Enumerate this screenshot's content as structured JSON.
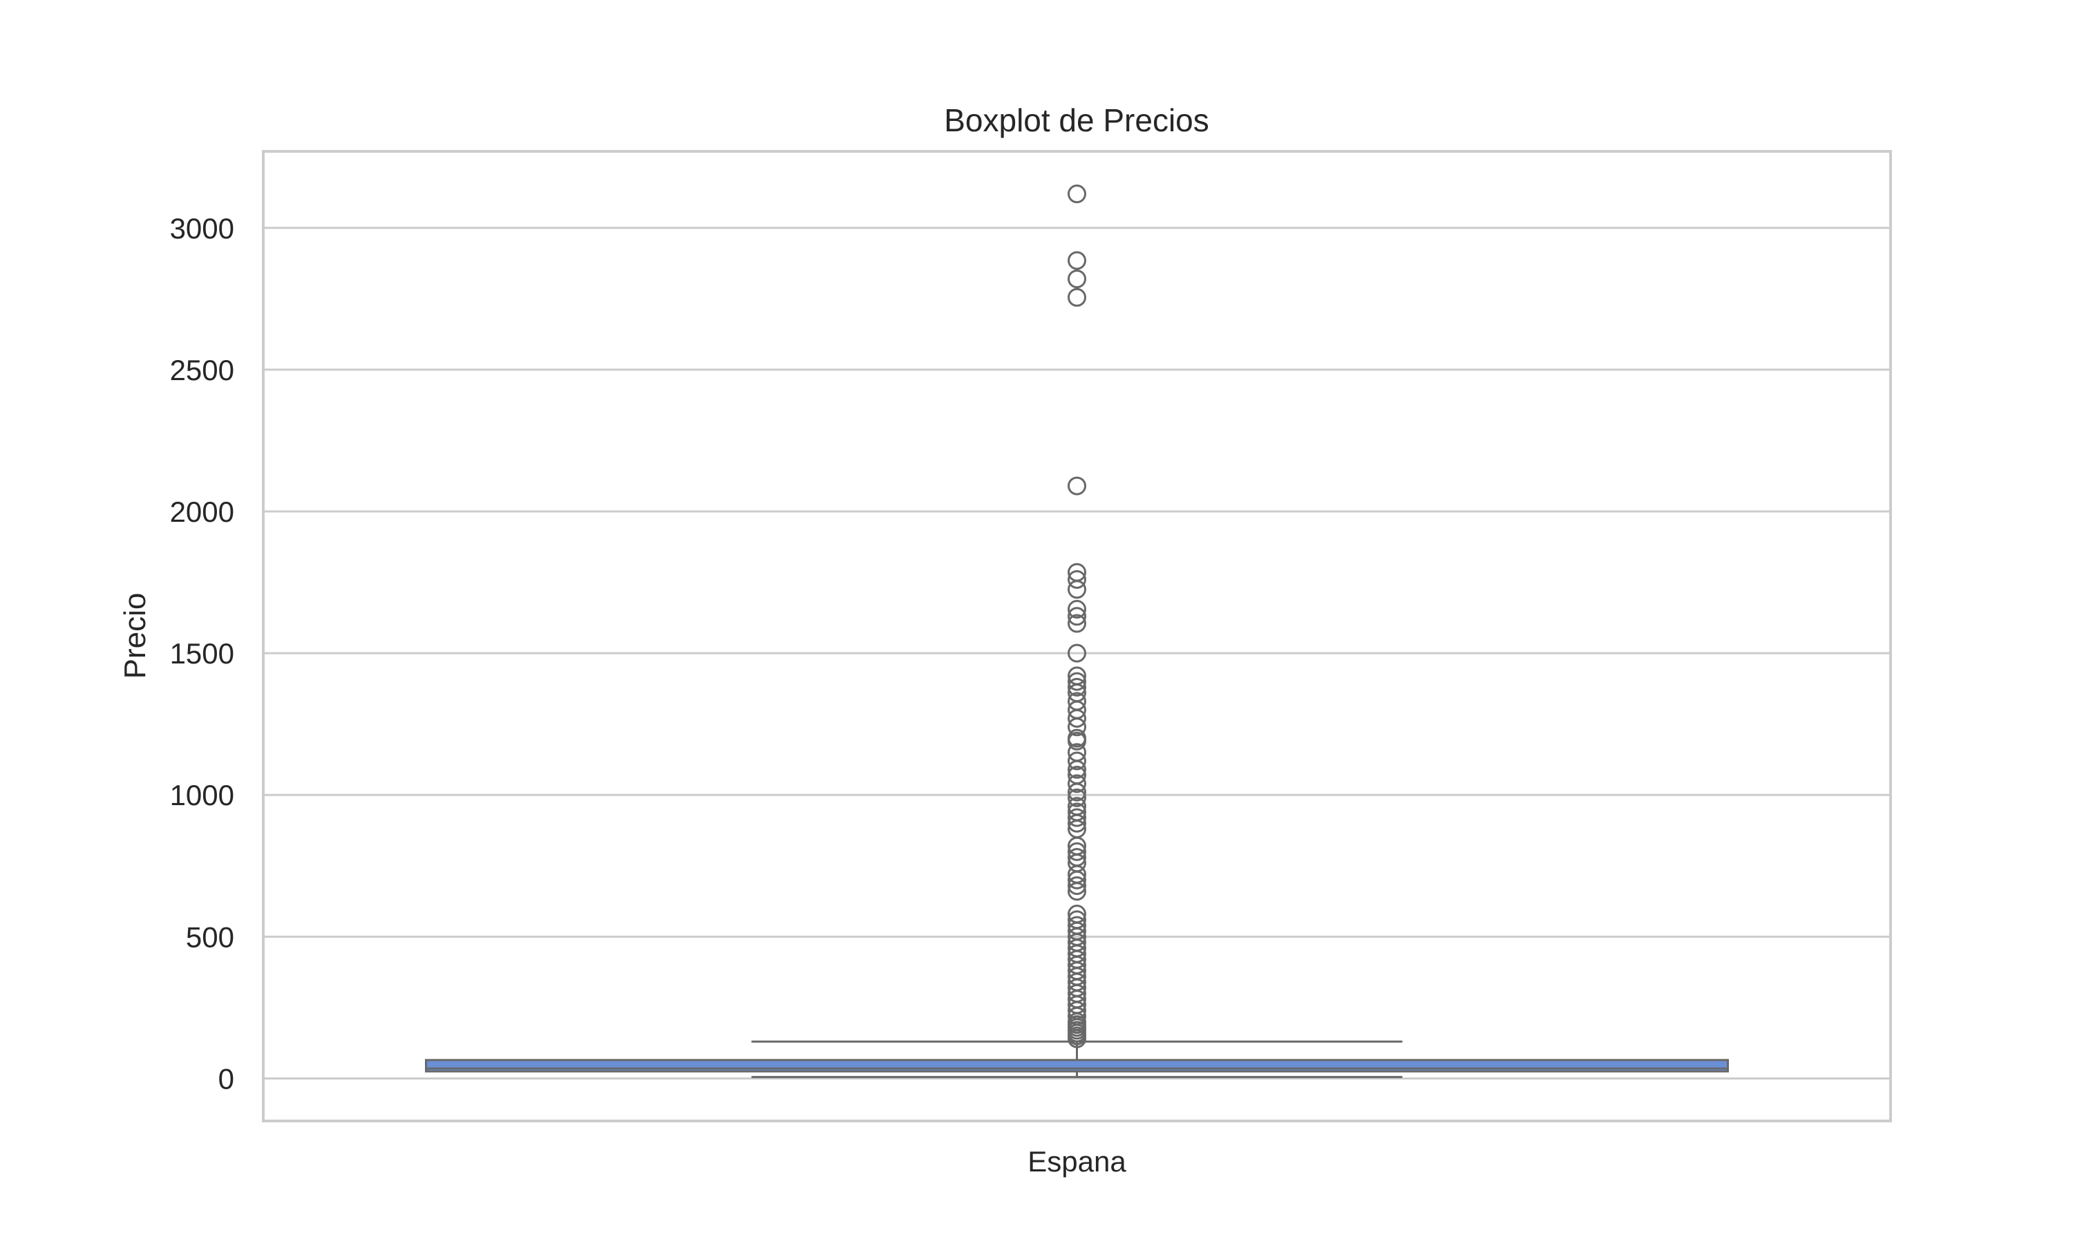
{
  "chart_data": {
    "type": "boxplot",
    "title": "Boxplot de Precios",
    "xlabel": "",
    "ylabel": "Precio",
    "categories": [
      "Espana"
    ],
    "ylim": [
      -150,
      3270
    ],
    "yticks": [
      0,
      500,
      1000,
      1500,
      2000,
      2500,
      3000
    ],
    "ytick_labels": [
      "0",
      "500",
      "1000",
      "1500",
      "2000",
      "2500",
      "3000"
    ],
    "grid": true,
    "boxes": [
      {
        "category": "Espana",
        "whisker_low": 5,
        "q1": 25,
        "median": 35,
        "q3": 65,
        "whisker_high": 130,
        "outliers": [
          3120,
          2885,
          2820,
          2755,
          2090,
          1785,
          1760,
          1725,
          1655,
          1630,
          1605,
          1500,
          1420,
          1400,
          1380,
          1360,
          1330,
          1300,
          1270,
          1240,
          1200,
          1190,
          1150,
          1120,
          1090,
          1070,
          1040,
          1010,
          990,
          960,
          940,
          920,
          900,
          880,
          820,
          800,
          780,
          760,
          720,
          700,
          680,
          660,
          580,
          560,
          540,
          520,
          500,
          480,
          460,
          440,
          420,
          400,
          380,
          360,
          340,
          320,
          300,
          280,
          260,
          240,
          220,
          200,
          190,
          180,
          170,
          160,
          150,
          140
        ]
      }
    ],
    "colors": {
      "box_fill": "#6b8fd6",
      "box_edge": "#686868",
      "whisker": "#686868",
      "outlier_edge": "#686868",
      "grid": "#cccccc",
      "spine": "#cccccc"
    }
  }
}
